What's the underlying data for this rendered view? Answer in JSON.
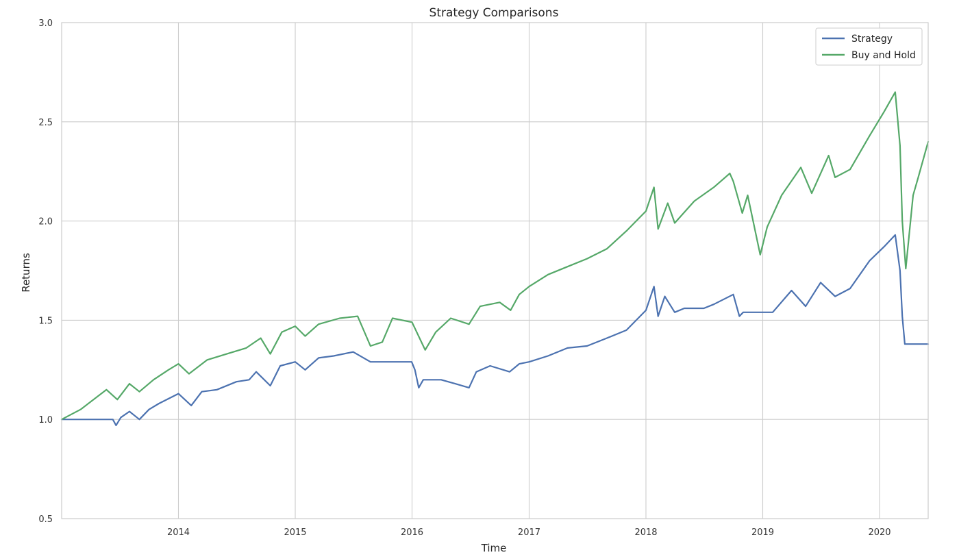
{
  "chart_data": {
    "type": "line",
    "title": "Strategy Comparisons",
    "xlabel": "Time",
    "ylabel": "Returns",
    "xlim": [
      "2013-01-01",
      "2020-06-01"
    ],
    "ylim": [
      0.5,
      3.0
    ],
    "grid": true,
    "legend_position": "top-right",
    "x_ticks": [
      "2014",
      "2015",
      "2016",
      "2017",
      "2018",
      "2019",
      "2020"
    ],
    "y_ticks": [
      "0.5",
      "1.0",
      "1.5",
      "2.0",
      "2.5",
      "3.0"
    ],
    "y_tick_values": [
      0.5,
      1.0,
      1.5,
      2.0,
      2.5,
      3.0
    ],
    "series": [
      {
        "name": "Strategy",
        "color": "#4c72b0",
        "points": [
          [
            "2013-01-01",
            1.0
          ],
          [
            "2013-06-10",
            1.0
          ],
          [
            "2013-06-20",
            0.97
          ],
          [
            "2013-07-05",
            1.01
          ],
          [
            "2013-08-01",
            1.04
          ],
          [
            "2013-09-01",
            1.0
          ],
          [
            "2013-10-01",
            1.05
          ],
          [
            "2013-11-01",
            1.08
          ],
          [
            "2014-01-01",
            1.13
          ],
          [
            "2014-02-10",
            1.07
          ],
          [
            "2014-03-15",
            1.14
          ],
          [
            "2014-05-01",
            1.15
          ],
          [
            "2014-07-01",
            1.19
          ],
          [
            "2014-08-10",
            1.2
          ],
          [
            "2014-09-01",
            1.24
          ],
          [
            "2014-10-15",
            1.17
          ],
          [
            "2014-11-15",
            1.27
          ],
          [
            "2015-01-01",
            1.29
          ],
          [
            "2015-02-01",
            1.25
          ],
          [
            "2015-03-15",
            1.31
          ],
          [
            "2015-05-01",
            1.32
          ],
          [
            "2015-07-01",
            1.34
          ],
          [
            "2015-08-24",
            1.29
          ],
          [
            "2015-12-31",
            1.29
          ],
          [
            "2016-01-10",
            1.25
          ],
          [
            "2016-01-22",
            1.16
          ],
          [
            "2016-02-05",
            1.2
          ],
          [
            "2016-04-01",
            1.2
          ],
          [
            "2016-05-15",
            1.18
          ],
          [
            "2016-06-27",
            1.16
          ],
          [
            "2016-07-20",
            1.24
          ],
          [
            "2016-09-01",
            1.27
          ],
          [
            "2016-11-01",
            1.24
          ],
          [
            "2016-12-01",
            1.28
          ],
          [
            "2017-01-01",
            1.29
          ],
          [
            "2017-03-01",
            1.32
          ],
          [
            "2017-05-01",
            1.36
          ],
          [
            "2017-07-01",
            1.37
          ],
          [
            "2017-09-01",
            1.41
          ],
          [
            "2017-11-01",
            1.45
          ],
          [
            "2018-01-01",
            1.55
          ],
          [
            "2018-01-26",
            1.67
          ],
          [
            "2018-02-08",
            1.52
          ],
          [
            "2018-03-01",
            1.62
          ],
          [
            "2018-04-01",
            1.54
          ],
          [
            "2018-05-01",
            1.56
          ],
          [
            "2018-07-01",
            1.56
          ],
          [
            "2018-08-01",
            1.58
          ],
          [
            "2018-10-01",
            1.63
          ],
          [
            "2018-10-20",
            1.52
          ],
          [
            "2018-11-01",
            1.54
          ],
          [
            "2019-02-01",
            1.54
          ],
          [
            "2019-04-01",
            1.65
          ],
          [
            "2019-05-15",
            1.57
          ],
          [
            "2019-07-01",
            1.69
          ],
          [
            "2019-08-15",
            1.62
          ],
          [
            "2019-10-01",
            1.66
          ],
          [
            "2019-12-01",
            1.8
          ],
          [
            "2020-01-15",
            1.87
          ],
          [
            "2020-02-19",
            1.93
          ],
          [
            "2020-03-05",
            1.75
          ],
          [
            "2020-03-12",
            1.52
          ],
          [
            "2020-03-20",
            1.38
          ],
          [
            "2020-06-01",
            1.38
          ]
        ]
      },
      {
        "name": "Buy and Hold",
        "color": "#55a868",
        "points": [
          [
            "2013-01-01",
            1.0
          ],
          [
            "2013-03-01",
            1.05
          ],
          [
            "2013-05-21",
            1.15
          ],
          [
            "2013-06-24",
            1.1
          ],
          [
            "2013-08-01",
            1.18
          ],
          [
            "2013-09-01",
            1.14
          ],
          [
            "2013-10-15",
            1.2
          ],
          [
            "2013-12-01",
            1.25
          ],
          [
            "2014-01-01",
            1.28
          ],
          [
            "2014-02-03",
            1.23
          ],
          [
            "2014-04-01",
            1.3
          ],
          [
            "2014-06-01",
            1.33
          ],
          [
            "2014-08-01",
            1.36
          ],
          [
            "2014-09-15",
            1.41
          ],
          [
            "2014-10-15",
            1.33
          ],
          [
            "2014-11-20",
            1.44
          ],
          [
            "2015-01-01",
            1.47
          ],
          [
            "2015-02-01",
            1.42
          ],
          [
            "2015-03-15",
            1.48
          ],
          [
            "2015-05-20",
            1.51
          ],
          [
            "2015-07-15",
            1.52
          ],
          [
            "2015-08-24",
            1.37
          ],
          [
            "2015-09-30",
            1.39
          ],
          [
            "2015-11-01",
            1.51
          ],
          [
            "2016-01-01",
            1.49
          ],
          [
            "2016-02-11",
            1.35
          ],
          [
            "2016-03-15",
            1.44
          ],
          [
            "2016-05-01",
            1.51
          ],
          [
            "2016-06-27",
            1.48
          ],
          [
            "2016-08-01",
            1.57
          ],
          [
            "2016-10-01",
            1.59
          ],
          [
            "2016-11-04",
            1.55
          ],
          [
            "2016-12-01",
            1.63
          ],
          [
            "2017-01-01",
            1.67
          ],
          [
            "2017-03-01",
            1.73
          ],
          [
            "2017-05-01",
            1.77
          ],
          [
            "2017-07-01",
            1.81
          ],
          [
            "2017-09-01",
            1.86
          ],
          [
            "2017-11-01",
            1.95
          ],
          [
            "2018-01-01",
            2.05
          ],
          [
            "2018-01-26",
            2.17
          ],
          [
            "2018-02-08",
            1.96
          ],
          [
            "2018-03-10",
            2.09
          ],
          [
            "2018-04-01",
            1.99
          ],
          [
            "2018-06-01",
            2.1
          ],
          [
            "2018-08-01",
            2.17
          ],
          [
            "2018-09-20",
            2.24
          ],
          [
            "2018-10-01",
            2.2
          ],
          [
            "2018-10-29",
            2.04
          ],
          [
            "2018-11-15",
            2.13
          ],
          [
            "2018-12-24",
            1.83
          ],
          [
            "2019-01-15",
            1.97
          ],
          [
            "2019-03-01",
            2.13
          ],
          [
            "2019-04-30",
            2.27
          ],
          [
            "2019-06-03",
            2.14
          ],
          [
            "2019-07-26",
            2.33
          ],
          [
            "2019-08-15",
            2.22
          ],
          [
            "2019-10-01",
            2.26
          ],
          [
            "2019-12-01",
            2.43
          ],
          [
            "2020-01-15",
            2.55
          ],
          [
            "2020-02-19",
            2.65
          ],
          [
            "2020-03-05",
            2.38
          ],
          [
            "2020-03-12",
            2.0
          ],
          [
            "2020-03-23",
            1.76
          ],
          [
            "2020-04-15",
            2.13
          ],
          [
            "2020-05-01",
            2.22
          ],
          [
            "2020-06-01",
            2.4
          ]
        ]
      }
    ]
  }
}
